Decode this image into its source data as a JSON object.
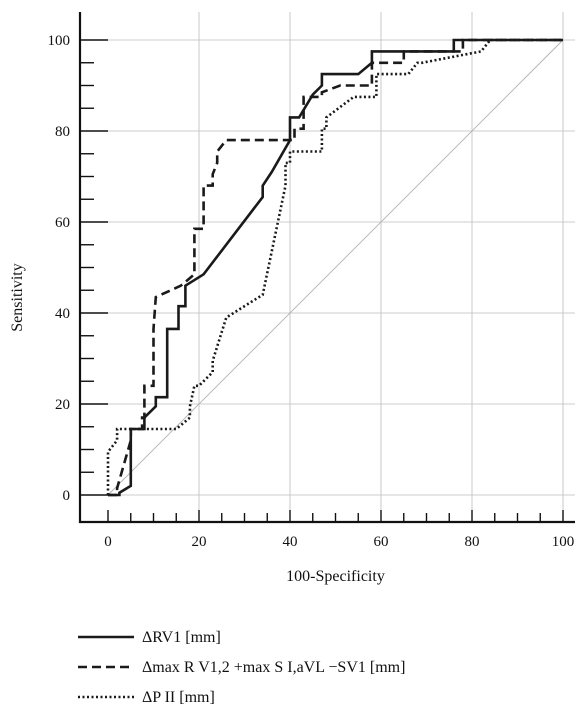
{
  "chart_data": {
    "type": "line",
    "title": "",
    "xlabel": "100-Specificity",
    "ylabel": "Sensitivity",
    "xlim": [
      0,
      100
    ],
    "ylim": [
      0,
      100
    ],
    "xticks": [
      0,
      20,
      40,
      60,
      80,
      100
    ],
    "yticks": [
      0,
      20,
      40,
      60,
      80,
      100
    ],
    "minor_tick_step": 5,
    "grid": true,
    "legend_position": "bottom-left",
    "reference_line": {
      "x": [
        0,
        100
      ],
      "y": [
        0,
        100
      ]
    },
    "series": [
      {
        "name": "ΔRV1 [mm]",
        "style": "solid",
        "x": [
          0,
          2.5,
          2.5,
          5,
          5,
          8,
          8,
          10.5,
          10.5,
          13,
          13,
          15.5,
          15.5,
          17,
          17,
          21,
          34,
          34,
          36,
          40,
          40,
          42,
          45,
          47,
          47,
          55,
          58,
          58,
          68,
          76,
          76,
          79,
          79,
          100
        ],
        "y": [
          0,
          0,
          0.5,
          2,
          14.5,
          14.5,
          17,
          19.5,
          21.5,
          21.5,
          36.5,
          36.5,
          41.5,
          41.5,
          46,
          48.5,
          65.5,
          68,
          71,
          78,
          83,
          83,
          88,
          90,
          92.5,
          92.5,
          95,
          97.5,
          97.5,
          97.5,
          100,
          100,
          100,
          100
        ]
      },
      {
        "name": "Δmax R V1,2 +max S I,aVL −SV1 [mm]",
        "style": "dashed",
        "x": [
          0,
          2,
          2,
          5,
          5,
          7.5,
          7.5,
          8,
          8,
          10,
          10,
          10.5,
          10.5,
          16,
          19,
          19,
          21,
          21,
          23,
          23,
          24,
          24,
          26,
          41,
          41,
          43,
          43,
          47,
          47,
          51,
          58,
          58,
          62,
          65,
          65,
          78,
          78,
          100
        ],
        "y": [
          0,
          0,
          1.5,
          12,
          14.5,
          14.5,
          17,
          17,
          24,
          24,
          36.5,
          43.5,
          43.5,
          46,
          48.5,
          58.5,
          58.5,
          68,
          68,
          70.5,
          73,
          75.5,
          78,
          78,
          80.5,
          80.5,
          87.5,
          87.5,
          88.5,
          90,
          90,
          95,
          95,
          95,
          97.5,
          97.5,
          100,
          100
        ]
      },
      {
        "name": "ΔP II [mm]",
        "style": "dotted",
        "x": [
          0,
          0,
          2,
          2,
          4,
          15,
          18,
          18,
          19,
          20,
          23,
          23,
          26,
          26,
          34,
          39,
          39,
          40,
          40,
          41,
          43,
          47,
          47,
          48,
          48,
          54,
          59,
          59,
          66,
          68,
          69,
          82,
          84,
          100
        ],
        "y": [
          0,
          9.5,
          12,
          14.5,
          14.5,
          14.5,
          17,
          19.5,
          24,
          24,
          27,
          29.5,
          39,
          39,
          44,
          68,
          73,
          73,
          75.5,
          75.5,
          75.5,
          75.5,
          80.5,
          80.5,
          83,
          87.5,
          87.5,
          92.5,
          92.5,
          95,
          95,
          97.5,
          100,
          100
        ]
      }
    ]
  }
}
